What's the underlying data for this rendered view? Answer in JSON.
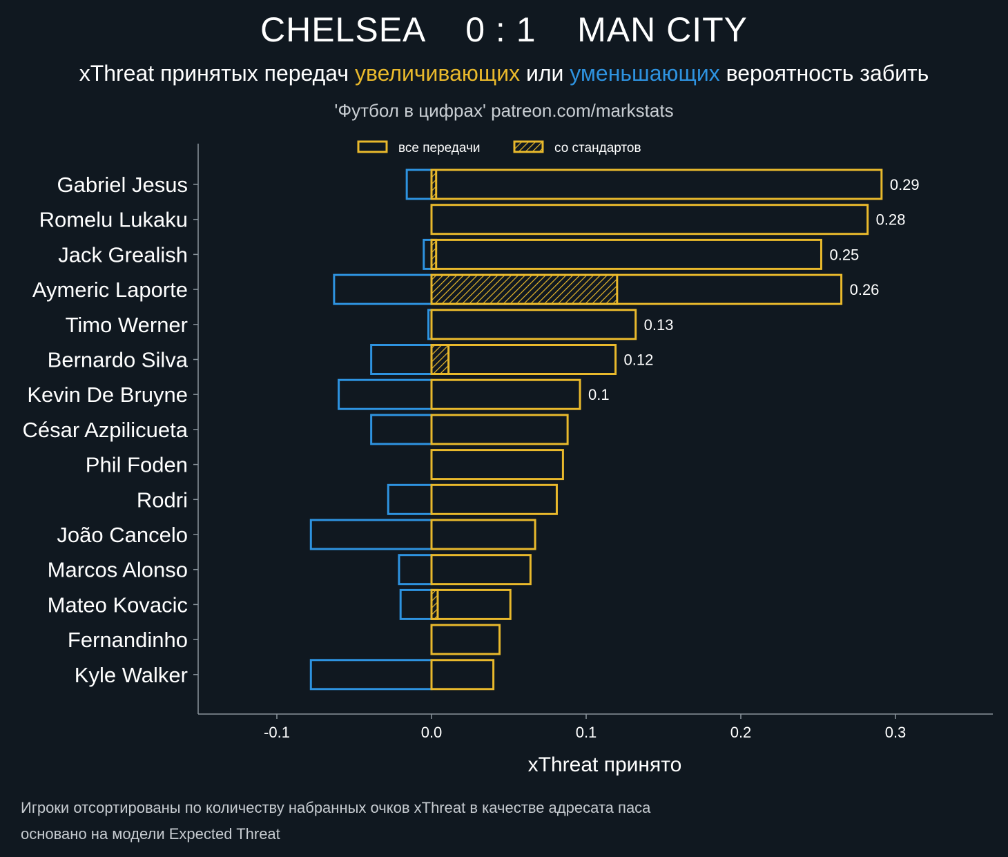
{
  "header": {
    "home_team": "CHELSEA",
    "score": "0 : 1",
    "away_team": "MAN CITY",
    "subtitle_part1": "xThreat принятых передач ",
    "subtitle_positive": "увеличивающих",
    "subtitle_part2": " или ",
    "subtitle_negative": "уменьшающих",
    "subtitle_part3": " вероятность забить",
    "credit": "'Футбол в цифрах' patreon.com/markstats"
  },
  "colors": {
    "background": "#101820",
    "positive": "#e9b92c",
    "negative": "#2e93e0",
    "axis": "#8a949c"
  },
  "chart_data": {
    "type": "bar",
    "orientation": "horizontal",
    "xlabel": "xThreat принято",
    "xlim": [
      -0.15,
      0.36
    ],
    "xticks": [
      -0.1,
      0.0,
      0.1,
      0.2,
      0.3
    ],
    "xtick_labels": [
      "-0.1",
      "0.0",
      "0.1",
      "0.2",
      "0.3"
    ],
    "legend": {
      "placement": "top",
      "entries": [
        "все передачи",
        "со стандартов"
      ]
    },
    "categories": [
      "Gabriel Jesus",
      "Romelu Lukaku",
      "Jack Grealish",
      "Aymeric Laporte",
      "Timo Werner",
      "Bernardo Silva",
      "Kevin De Bruyne",
      "César Azpilicueta",
      "Phil Foden",
      "Rodri",
      "João Cancelo",
      "Marcos Alonso",
      "Mateo Kovacic",
      "Fernandinho",
      "Kyle Walker"
    ],
    "positive": [
      0.291,
      0.282,
      0.252,
      0.265,
      0.132,
      0.119,
      0.096,
      0.088,
      0.085,
      0.081,
      0.067,
      0.064,
      0.051,
      0.044,
      0.04
    ],
    "negative": [
      -0.016,
      0,
      -0.005,
      -0.063,
      -0.002,
      -0.039,
      -0.06,
      -0.039,
      0,
      -0.028,
      -0.078,
      -0.021,
      -0.02,
      0,
      -0.078
    ],
    "set_pieces": [
      0.003,
      0,
      0.003,
      0.12,
      0,
      0.011,
      0,
      0,
      0,
      0,
      0,
      0,
      0.004,
      0,
      0
    ],
    "net_labels": [
      "0.29",
      "0.28",
      "0.25",
      "0.26",
      "0.13",
      "0.12",
      "0.1",
      "",
      "",
      "",
      "",
      "",
      "",
      "",
      ""
    ]
  },
  "footnotes": {
    "line1": "Игроки отсортированы по количеству набранных очков xThreat в качестве адресата паса",
    "line2": "основано на модели Expected Threat"
  }
}
